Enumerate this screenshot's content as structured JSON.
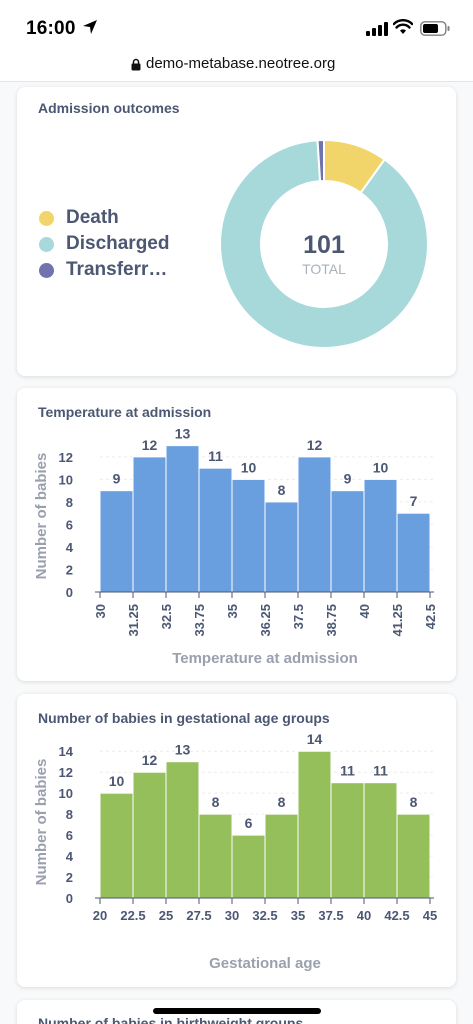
{
  "status": {
    "time": "16:00"
  },
  "browser": {
    "url": "demo-metabase.neotree.org"
  },
  "cards": {
    "outcomes": {
      "title": "Admission outcomes",
      "total": "101",
      "total_label": "TOTAL",
      "legend": [
        {
          "label": "Death",
          "color": "#f1d56a"
        },
        {
          "label": "Discharged",
          "color": "#a7d9db"
        },
        {
          "label": "Transferr…",
          "color": "#7173ad"
        }
      ]
    },
    "temperature": {
      "title": "Temperature at admission"
    },
    "gestational": {
      "title": "Number of babies in gestational age groups"
    },
    "birthweight": {
      "title": "Number of babies in birthweight groups"
    }
  },
  "chart_data": [
    {
      "type": "pie",
      "title": "Admission outcomes",
      "total": 101,
      "categories": [
        "Death",
        "Discharged",
        "Transferred"
      ],
      "values": [
        10,
        90,
        1
      ],
      "colors": [
        "#f1d56a",
        "#a7d9db",
        "#7173ad"
      ]
    },
    {
      "type": "bar",
      "title": "Temperature at admission",
      "xlabel": "Temperature at admission",
      "ylabel": "Number of babies",
      "x_ticks": [
        "30",
        "31.25",
        "32.5",
        "33.75",
        "35",
        "36.25",
        "37.5",
        "38.75",
        "40",
        "41.25",
        "42.5"
      ],
      "values": [
        9,
        12,
        13,
        11,
        10,
        8,
        12,
        9,
        10,
        7
      ],
      "y_ticks": [
        0,
        2,
        4,
        6,
        8,
        10,
        12
      ],
      "ylim": [
        0,
        13.5
      ],
      "color": "#6a9fdf",
      "grid": true
    },
    {
      "type": "bar",
      "title": "Number of babies in gestational age groups",
      "xlabel": "Gestational age",
      "ylabel": "Number of babies",
      "x_ticks": [
        "20",
        "22.5",
        "25",
        "27.5",
        "30",
        "32.5",
        "35",
        "37.5",
        "40",
        "42.5",
        "45"
      ],
      "values": [
        10,
        12,
        13,
        8,
        6,
        8,
        14,
        11,
        11,
        8
      ],
      "y_ticks": [
        0,
        2,
        4,
        6,
        8,
        10,
        12,
        14
      ],
      "ylim": [
        0,
        14.5
      ],
      "color": "#95bf5b",
      "grid": true
    }
  ]
}
